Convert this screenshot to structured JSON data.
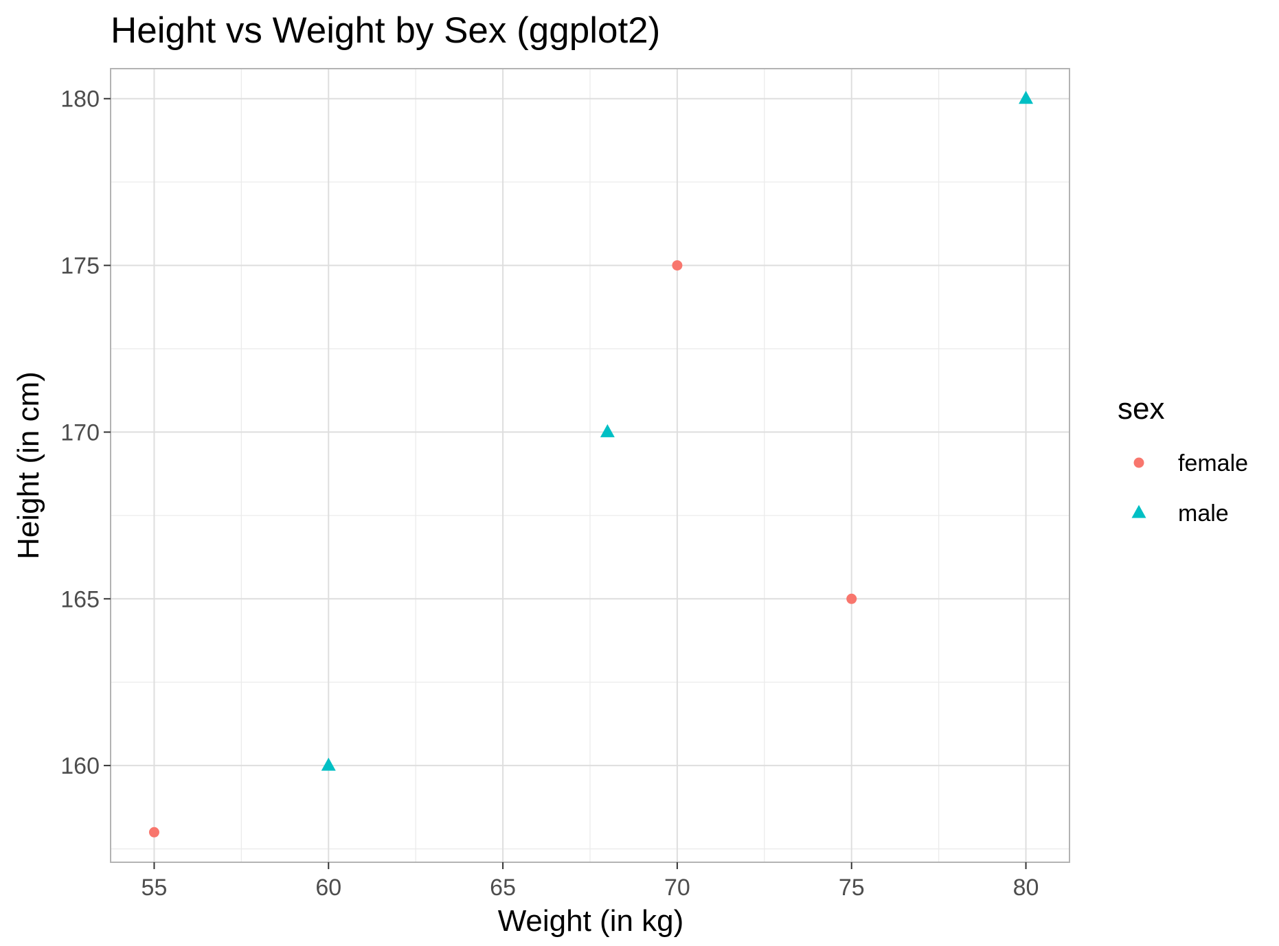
{
  "chart_data": {
    "type": "scatter",
    "title": "Height vs Weight by Sex (ggplot2)",
    "xlabel": "Weight (in kg)",
    "ylabel": "Height (in cm)",
    "xlim": [
      53.75,
      81.25
    ],
    "ylim": [
      157.1,
      180.9
    ],
    "x_ticks": [
      55,
      60,
      65,
      70,
      75,
      80
    ],
    "y_ticks": [
      160,
      165,
      170,
      175,
      180
    ],
    "x_tick_labels": [
      "55",
      "60",
      "65",
      "70",
      "75",
      "80"
    ],
    "y_tick_labels": [
      "160",
      "165",
      "170",
      "175",
      "180"
    ],
    "grid": true,
    "legend_position": "right",
    "legend_title": "sex",
    "series": [
      {
        "name": "female",
        "marker": "circle",
        "color": "#F8766D",
        "points": [
          {
            "x": 55,
            "y": 158
          },
          {
            "x": 70,
            "y": 175
          },
          {
            "x": 75,
            "y": 165
          }
        ]
      },
      {
        "name": "male",
        "marker": "triangle",
        "color": "#00BFC4",
        "points": [
          {
            "x": 60,
            "y": 160
          },
          {
            "x": 68,
            "y": 170
          },
          {
            "x": 80,
            "y": 180
          }
        ]
      }
    ]
  }
}
